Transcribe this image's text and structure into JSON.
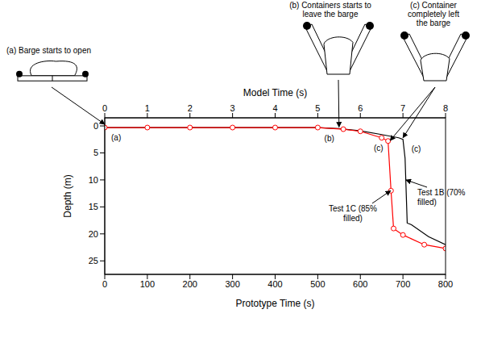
{
  "chart_data": {
    "type": "line",
    "x_label": "Prototype Time (s)",
    "x2_label": "Model Time (s)",
    "y_label": "Depth (m)",
    "xlim": [
      0,
      800
    ],
    "xticks": [
      0,
      100,
      200,
      300,
      400,
      500,
      600,
      700,
      800
    ],
    "x2lim": [
      0,
      8
    ],
    "x2ticks": [
      0,
      1,
      2,
      3,
      4,
      5,
      6,
      7,
      8
    ],
    "ylim": [
      27.5,
      -1.5
    ],
    "yticks": [
      0,
      5,
      10,
      15,
      20,
      25
    ],
    "grid": false,
    "series": [
      {
        "name": "Test 1B (70% filled)",
        "color": "#000000",
        "marker": "none",
        "x": [
          0,
          500,
          550,
          600,
          650,
          690,
          700,
          705,
          710,
          720,
          760,
          800
        ],
        "values": [
          0.3,
          0.3,
          0.5,
          0.9,
          1.6,
          2.2,
          2.5,
          6,
          18,
          18.3,
          20.5,
          22
        ],
        "label_point": [
          707,
          10
        ]
      },
      {
        "name": "Test 1C (85% filled)",
        "color": "#ff0000",
        "marker": "circle",
        "x": [
          0,
          100,
          200,
          300,
          400,
          500,
          560,
          600,
          650,
          665,
          672,
          678,
          700,
          750,
          800
        ],
        "values": [
          0.3,
          0.3,
          0.3,
          0.3,
          0.3,
          0.3,
          0.6,
          1.0,
          2.2,
          2.8,
          12,
          19,
          20.2,
          22,
          22.7
        ],
        "label_point": [
          671,
          12
        ]
      }
    ],
    "annotations": [
      {
        "text": "(a)",
        "x": 0,
        "y": 0.3
      },
      {
        "text": "(b)",
        "x": 550,
        "y": 0.5
      },
      {
        "text": "(c)",
        "x": 665,
        "y": 2.8
      },
      {
        "text": "(c)",
        "x": 705,
        "y": 3
      }
    ],
    "callouts": [
      {
        "text": "(a) Barge starts to open",
        "targets": [
          [
            0,
            0
          ]
        ]
      },
      {
        "text": "(b) Containers starts to leave the barge",
        "targets": [
          [
            550,
            0.5
          ]
        ]
      },
      {
        "text": "(c) Container completely left the barge",
        "targets": [
          [
            670,
            3
          ],
          [
            700,
            2.5
          ]
        ]
      }
    ]
  }
}
